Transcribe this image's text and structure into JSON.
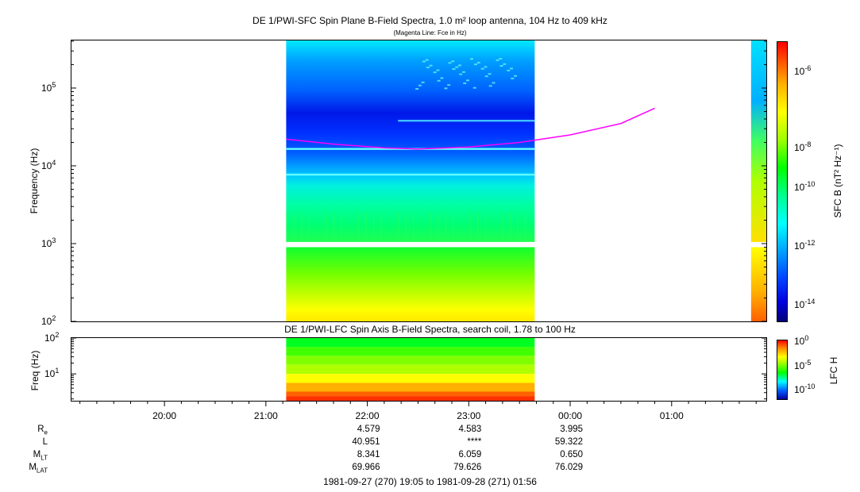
{
  "chart_data": [
    {
      "type": "heatmap",
      "title": "DE 1/PWI-SFC  Spin Plane B-Field Spectra, 1.0 m² loop antenna, 104 Hz to 409 kHz",
      "subtitle": "(Magenta Line: Fce in Hz)",
      "ylabel": "Frequency (Hz)",
      "yscale": "log",
      "ylim": [
        100,
        409000
      ],
      "yticks": [
        {
          "base": "10",
          "exp": "5"
        },
        {
          "base": "10",
          "exp": "4"
        },
        {
          "base": "10",
          "exp": "3"
        },
        {
          "base": "10",
          "exp": "2"
        }
      ],
      "colorbar_label": "SFC B (nT² Hz⁻¹)",
      "colorbar_ticks": [
        {
          "base": "10",
          "exp": "-6"
        },
        {
          "base": "10",
          "exp": "-8"
        },
        {
          "base": "10",
          "exp": "-10"
        },
        {
          "base": "10",
          "exp": "-12"
        },
        {
          "base": "10",
          "exp": "-14"
        }
      ],
      "colorbar_scale": "log",
      "data_intervals_utc": [
        [
          "21:12",
          "23:39"
        ],
        [
          "01:47",
          "01:56"
        ]
      ],
      "fce_line": {
        "name": "Fce",
        "color": "#ff00ff",
        "points": [
          {
            "t": "21:12",
            "f": 22000
          },
          {
            "t": "21:40",
            "f": 19000
          },
          {
            "t": "22:10",
            "f": 17000
          },
          {
            "t": "22:30",
            "f": 16500
          },
          {
            "t": "23:00",
            "f": 17500
          },
          {
            "t": "23:30",
            "f": 20000
          },
          {
            "t": "00:00",
            "f": 25000
          },
          {
            "t": "00:30",
            "f": 35000
          },
          {
            "t": "00:50",
            "f": 55000
          }
        ]
      }
    },
    {
      "type": "heatmap",
      "title": "DE 1/PWI-LFC  Spin Axis B-Field Spectra, search coil, 1.78 to 100 Hz",
      "ylabel": "Freq (Hz)",
      "yscale": "log",
      "ylim": [
        1.78,
        100
      ],
      "yticks": [
        {
          "base": "10",
          "exp": "2"
        },
        {
          "base": "10",
          "exp": "1"
        }
      ],
      "colorbar_label": "LFC H",
      "colorbar_ticks": [
        {
          "base": "10",
          "exp": "0"
        },
        {
          "base": "10",
          "exp": "-5"
        },
        {
          "base": "10",
          "exp": "-10"
        }
      ],
      "data_intervals_utc": [
        [
          "21:12",
          "23:39"
        ]
      ]
    }
  ],
  "x_axis": {
    "start": "19:05",
    "end": "01:56",
    "tick_labels": [
      "20:00",
      "21:00",
      "22:00",
      "23:00",
      "00:00",
      "01:00"
    ]
  },
  "ephemeris": {
    "labels": [
      {
        "base": "R",
        "sub": "e"
      },
      {
        "base": "L",
        "sub": ""
      },
      {
        "base": "M",
        "sub": "LT"
      },
      {
        "base": "M",
        "sub": "LAT"
      }
    ],
    "columns": [
      {
        "time": "22:00",
        "values": [
          "4.579",
          "40.951",
          "8.341",
          "69.966"
        ]
      },
      {
        "time": "23:00",
        "values": [
          "4.583",
          "****",
          "6.059",
          "79.626"
        ]
      },
      {
        "time": "00:00",
        "values": [
          "3.995",
          "59.322",
          "0.650",
          "76.029"
        ]
      }
    ]
  },
  "footer": "1981-09-27 (270) 19:05 to 1981-09-28 (271) 01:56",
  "colors": {
    "fce_line": "#ff00ff",
    "colormap": [
      "#00007a",
      "#0000ff",
      "#0080ff",
      "#00ffff",
      "#00ff80",
      "#00ff00",
      "#80ff00",
      "#ffff00",
      "#ff8000",
      "#ff0000"
    ]
  }
}
